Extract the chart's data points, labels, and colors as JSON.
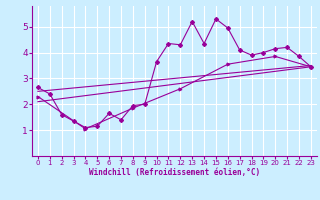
{
  "title": "",
  "xlabel": "Windchill (Refroidissement éolien,°C)",
  "background_color": "#cceeff",
  "grid_color": "#ffffff",
  "line_color": "#990099",
  "xlim": [
    -0.5,
    23.5
  ],
  "ylim": [
    0,
    5.8
  ],
  "yticks": [
    1,
    2,
    3,
    4,
    5
  ],
  "xticks": [
    0,
    1,
    2,
    3,
    4,
    5,
    6,
    7,
    8,
    9,
    10,
    11,
    12,
    13,
    14,
    15,
    16,
    17,
    18,
    19,
    20,
    21,
    22,
    23
  ],
  "line1_x": [
    0,
    1,
    2,
    3,
    4,
    5,
    6,
    7,
    8,
    9,
    10,
    11,
    12,
    13,
    14,
    15,
    16,
    17,
    18,
    19,
    20,
    21,
    22,
    23
  ],
  "line1_y": [
    2.65,
    2.4,
    1.6,
    1.35,
    1.1,
    1.15,
    1.65,
    1.4,
    1.95,
    2.0,
    3.65,
    4.35,
    4.3,
    5.2,
    4.35,
    5.3,
    4.95,
    4.1,
    3.9,
    4.0,
    4.15,
    4.2,
    3.85,
    3.45
  ],
  "line2_x": [
    0,
    4,
    8,
    12,
    16,
    20,
    23
  ],
  "line2_y": [
    2.3,
    1.05,
    1.85,
    2.6,
    3.55,
    3.85,
    3.45
  ],
  "line3_x": [
    0,
    23
  ],
  "line3_y": [
    2.1,
    3.45
  ],
  "line4_x": [
    0,
    23
  ],
  "line4_y": [
    2.5,
    3.5
  ]
}
